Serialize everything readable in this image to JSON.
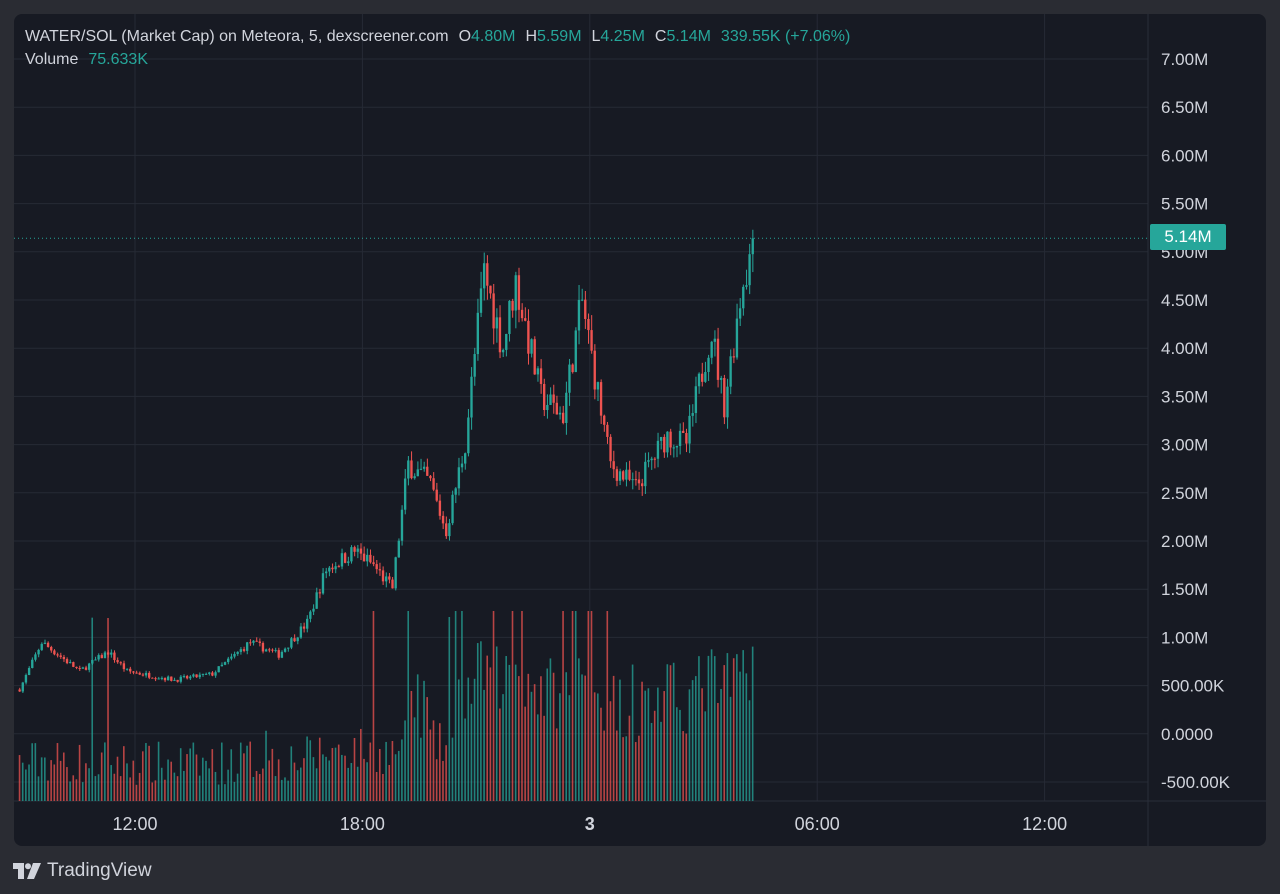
{
  "legend": {
    "symbol": "WATER/SOL (Market Cap) on Meteora, 5, dexscreener.com",
    "o_label": "O",
    "o_value": "4.80M",
    "h_label": "H",
    "h_value": "5.59M",
    "l_label": "L",
    "l_value": "4.25M",
    "c_label": "C",
    "c_value": "5.14M",
    "change": "339.55K (+7.06%)",
    "volume_label": "Volume",
    "volume_value": "75.633K"
  },
  "last_price_label": "5.14M",
  "branding": "TradingView",
  "colors": {
    "up": "#26a69a",
    "down": "#ef5350",
    "background": "#171a23",
    "grid": "#262a35",
    "text": "#d1d4dc"
  },
  "chart_data": {
    "type": "candlestick",
    "interval": "5",
    "x_ticks": [
      "12:00",
      "18:00",
      "3",
      "06:00",
      "12:00"
    ],
    "y_ticks": [
      "-500.00K",
      "0.0000",
      "500.00K",
      "1.00M",
      "1.50M",
      "2.00M",
      "2.50M",
      "3.00M",
      "3.50M",
      "4.00M",
      "4.50M",
      "5.00M",
      "5.50M",
      "6.00M",
      "6.50M",
      "7.00M"
    ],
    "ylim": [
      -700000,
      7300000
    ],
    "last_close": 5140000,
    "price_path": [
      {
        "t": "08:55",
        "v": 460000
      },
      {
        "t": "09:30",
        "v": 950000
      },
      {
        "t": "10:30",
        "v": 650000
      },
      {
        "t": "11:15",
        "v": 850000
      },
      {
        "t": "11:45",
        "v": 650000
      },
      {
        "t": "13:00",
        "v": 560000
      },
      {
        "t": "14:00",
        "v": 620000
      },
      {
        "t": "15:00",
        "v": 950000
      },
      {
        "t": "15:45",
        "v": 820000
      },
      {
        "t": "16:30",
        "v": 1150000
      },
      {
        "t": "17:00",
        "v": 1700000
      },
      {
        "t": "17:45",
        "v": 1900000
      },
      {
        "t": "18:15",
        "v": 1750000
      },
      {
        "t": "18:45",
        "v": 1500000
      },
      {
        "t": "19:10",
        "v": 2800000
      },
      {
        "t": "19:45",
        "v": 2600000
      },
      {
        "t": "20:10",
        "v": 2100000
      },
      {
        "t": "20:40",
        "v": 3000000
      },
      {
        "t": "21:10",
        "v": 4800000
      },
      {
        "t": "21:40",
        "v": 4000000
      },
      {
        "t": "22:00",
        "v": 4700000
      },
      {
        "t": "22:40",
        "v": 3500000
      },
      {
        "t": "23:15",
        "v": 3300000
      },
      {
        "t": "23:45",
        "v": 4500000
      },
      {
        "t": "00:30",
        "v": 2800000
      },
      {
        "t": "01:10",
        "v": 2550000
      },
      {
        "t": "02:00",
        "v": 3100000
      },
      {
        "t": "02:30",
        "v": 3000000
      },
      {
        "t": "03:10",
        "v": 4200000
      },
      {
        "t": "03:30",
        "v": 3400000
      },
      {
        "t": "04:00",
        "v": 4700000
      },
      {
        "t": "04:20",
        "v": 5140000
      }
    ]
  }
}
